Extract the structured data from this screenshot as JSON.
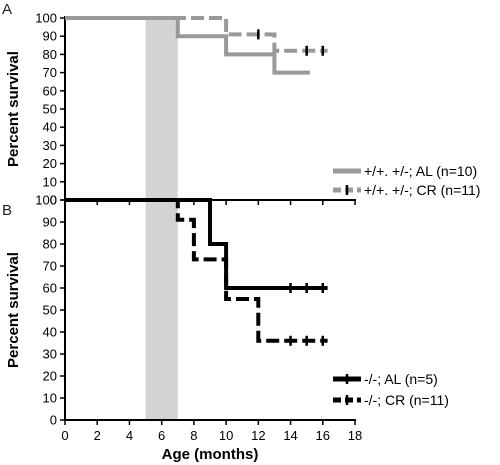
{
  "chart_data": [
    {
      "panel_label": "A",
      "type": "line",
      "step": true,
      "xlim": [
        0,
        18
      ],
      "ylim": [
        0,
        100
      ],
      "x_ticks": [
        0,
        2,
        4,
        6,
        8,
        10,
        12,
        14,
        16,
        18
      ],
      "y_ticks": [
        0,
        10,
        20,
        30,
        40,
        50,
        60,
        70,
        80,
        90,
        100
      ],
      "ylabel": "Percent survival",
      "xlabel": "",
      "shaded_region": [
        5,
        7
      ],
      "shaded_color": "#d3d3d3",
      "legend_position": "bottom-right",
      "series": [
        {
          "name": "+/+. +/-; AL (n=10)",
          "color": "#999999",
          "dashed": false,
          "points": [
            [
              0,
              100
            ],
            [
              7,
              100
            ],
            [
              7,
              90
            ],
            [
              10,
              90
            ],
            [
              10,
              80
            ],
            [
              13,
              80
            ],
            [
              13,
              70
            ],
            [
              15.2,
              70
            ]
          ],
          "censor_marks": []
        },
        {
          "name": "+/+. +/-; CR (n=11)",
          "color": "#999999",
          "dashed": true,
          "points": [
            [
              0,
              100
            ],
            [
              10,
              100
            ],
            [
              10,
              91
            ],
            [
              13,
              91
            ],
            [
              13,
              82
            ],
            [
              16.3,
              82
            ]
          ],
          "censor_marks": [
            [
              12,
              91
            ],
            [
              15,
              82
            ],
            [
              16,
              82
            ]
          ]
        }
      ]
    },
    {
      "panel_label": "B",
      "type": "line",
      "step": true,
      "xlim": [
        0,
        18
      ],
      "ylim": [
        0,
        100
      ],
      "x_ticks": [
        0,
        2,
        4,
        6,
        8,
        10,
        12,
        14,
        16,
        18
      ],
      "y_ticks": [
        0,
        10,
        20,
        30,
        40,
        50,
        60,
        70,
        80,
        90,
        100
      ],
      "ylabel": "Percent survival",
      "xlabel": "Age (months)",
      "shaded_region": [
        5,
        7
      ],
      "shaded_color": "#d3d3d3",
      "legend_position": "bottom-right",
      "series": [
        {
          "name": "-/-; AL (n=5)",
          "color": "#000000",
          "dashed": false,
          "points": [
            [
              0,
              100
            ],
            [
              9,
              100
            ],
            [
              9,
              80
            ],
            [
              10,
              80
            ],
            [
              10,
              60
            ],
            [
              16.3,
              60
            ]
          ],
          "censor_marks": [
            [
              14,
              60
            ],
            [
              15,
              60
            ],
            [
              16,
              60
            ]
          ]
        },
        {
          "name": "-/-; CR (n=11)",
          "color": "#000000",
          "dashed": true,
          "points": [
            [
              0,
              100
            ],
            [
              7,
              100
            ],
            [
              7,
              91
            ],
            [
              8,
              91
            ],
            [
              8,
              73
            ],
            [
              10,
              73
            ],
            [
              10,
              55
            ],
            [
              12,
              55
            ],
            [
              12,
              36
            ],
            [
              16.3,
              36
            ]
          ],
          "censor_marks": [
            [
              14,
              36
            ],
            [
              15,
              36
            ],
            [
              16,
              36
            ]
          ]
        }
      ]
    }
  ]
}
